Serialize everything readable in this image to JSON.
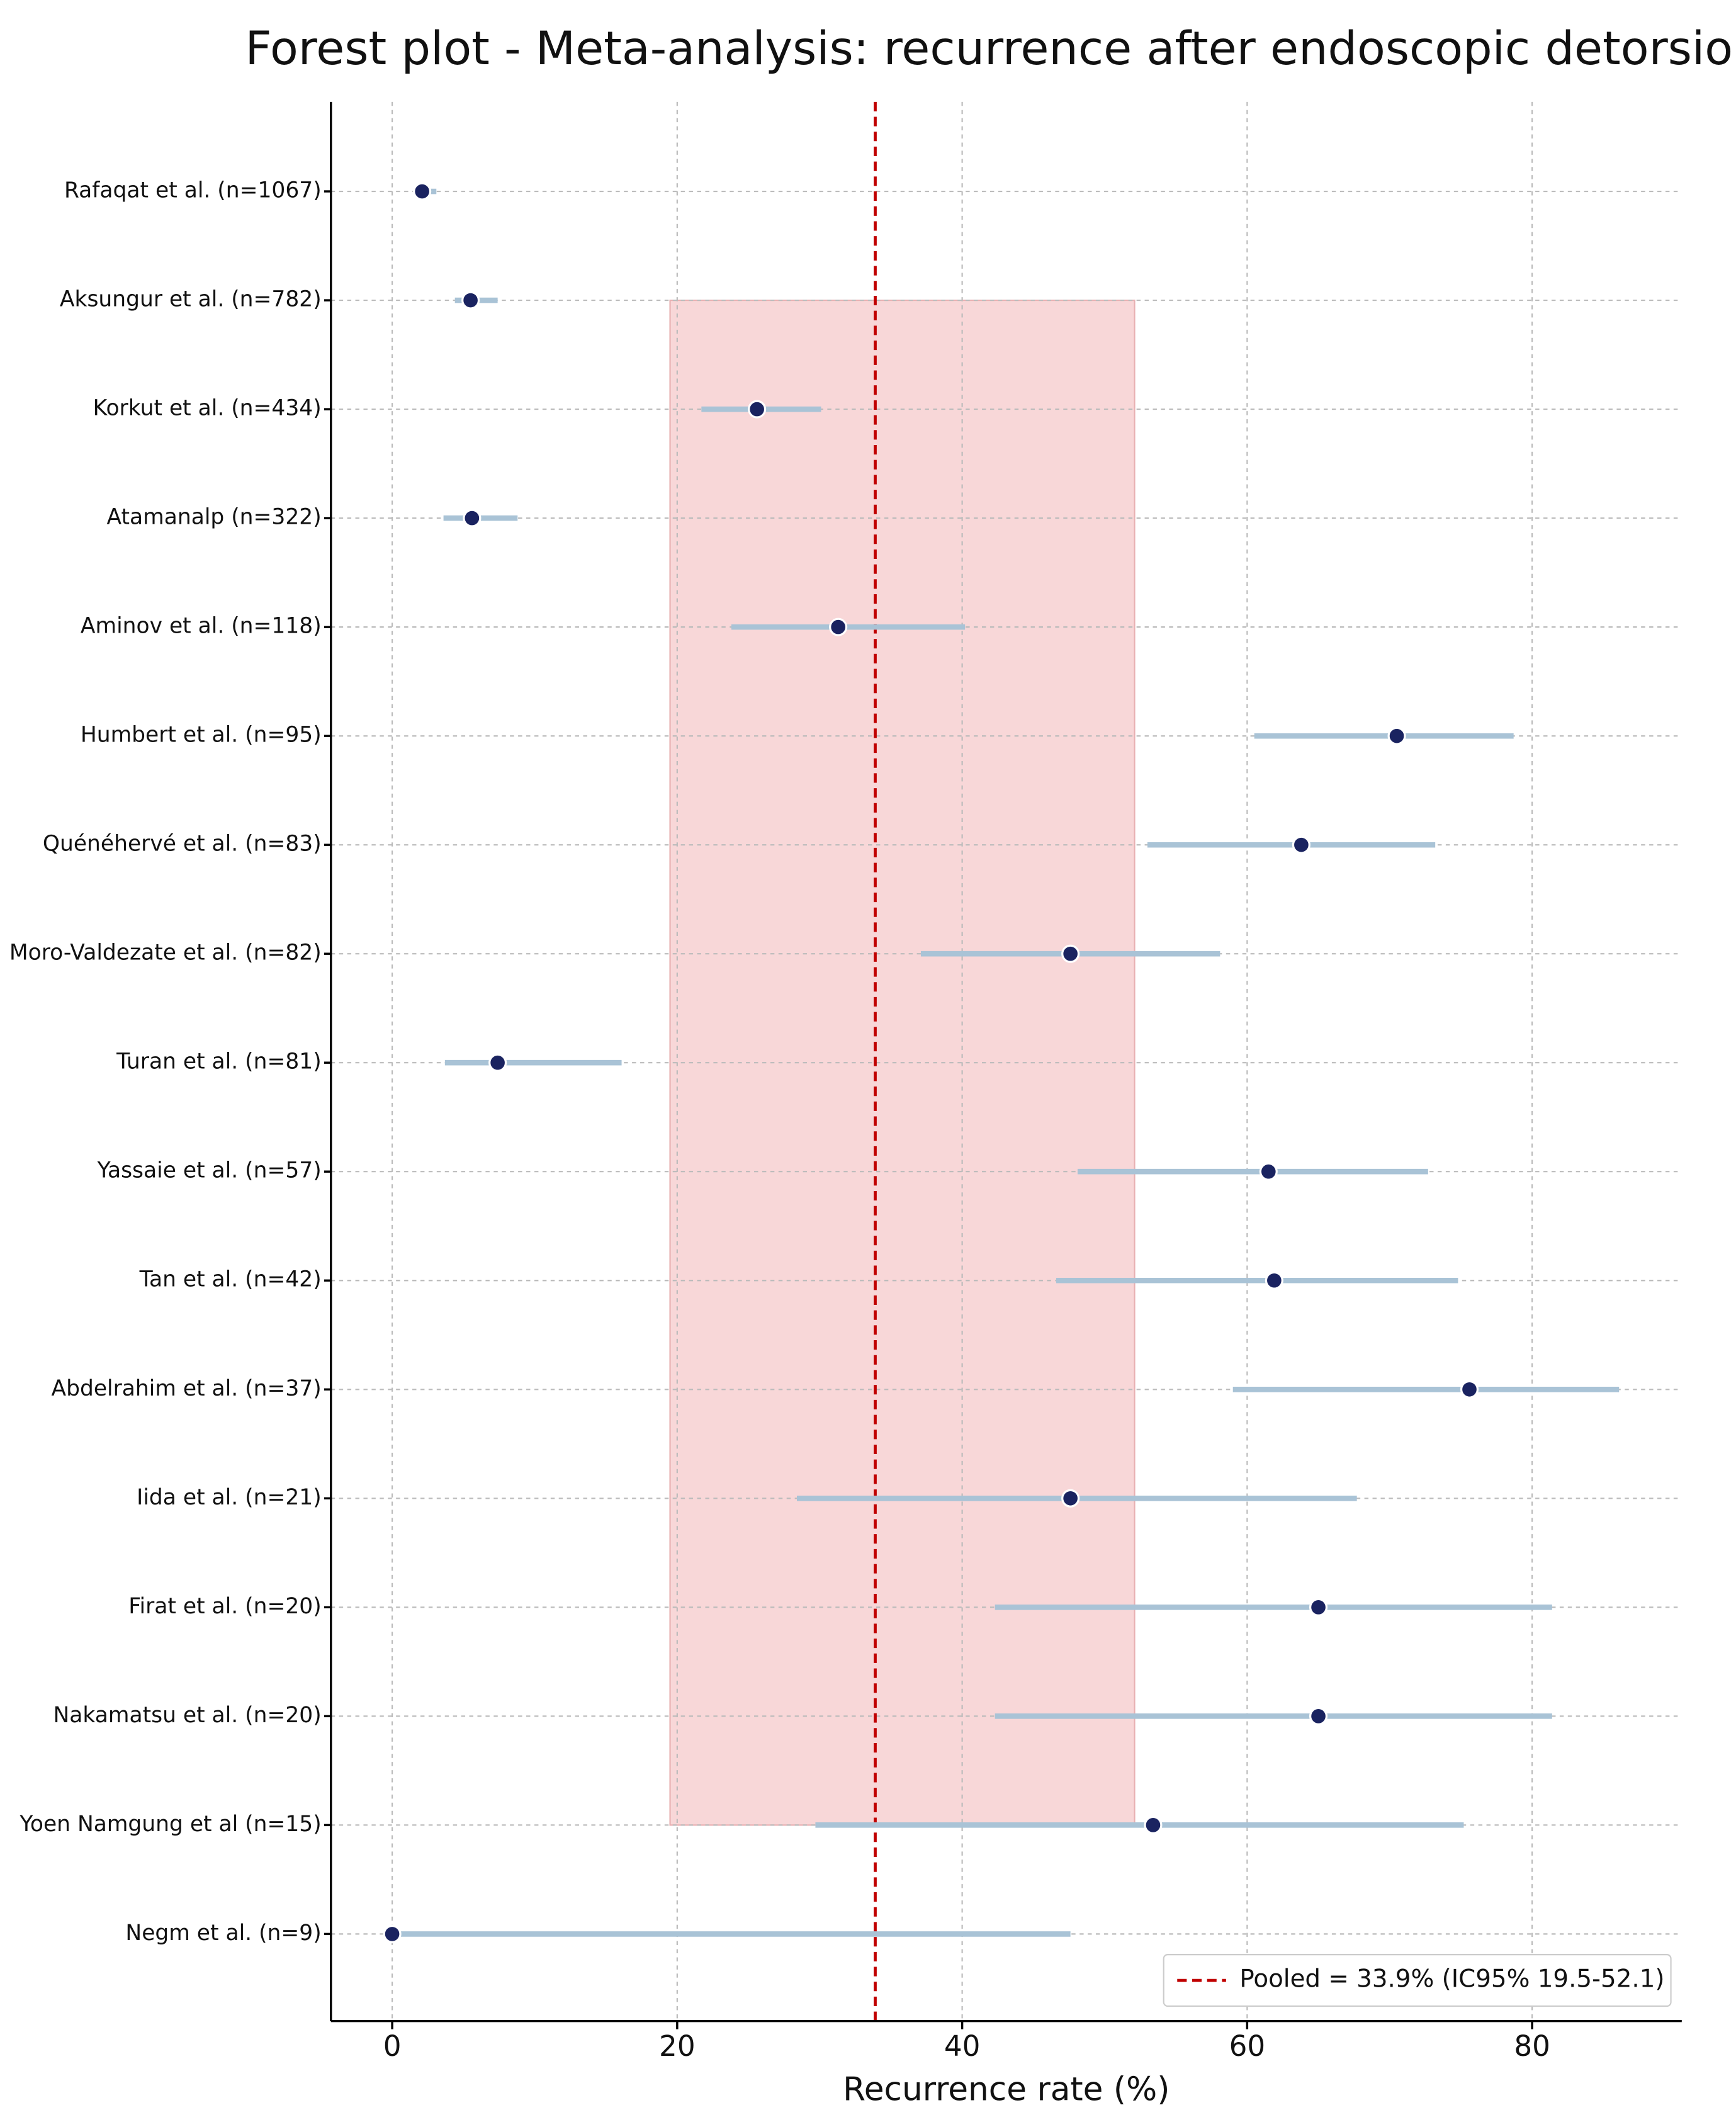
{
  "chart_data": {
    "type": "forest",
    "title": "Forest plot - Meta-analysis: recurrence after endoscopic detorsion",
    "x_label": "Recurrence rate (%)",
    "categories": [
      "Rafaqat et al. (n=1067)",
      "Aksungur et al. (n=782)",
      "Korkut et al. (n=434)",
      "Atamanalp (n=322)",
      "Aminov et al. (n=118)",
      "Humbert et al. (n=95)",
      "Quénéhervé et al. (n=83)",
      "Moro-Valdezate et al. (n=82)",
      "Turan et al. (n=81)",
      "Yassaie et al. (n=57)",
      "Tan et al. (n=42)",
      "Abdelrahim et al. (n=37)",
      "Iida et al. (n=21)",
      "Firat et al. (n=20)",
      "Nakamatsu et al. (n=20)",
      "Yoen Namgung et al (n=15)",
      "Negm et al. (n=9)"
    ],
    "values": [
      2.1,
      5.5,
      25.6,
      5.6,
      31.3,
      70.5,
      63.8,
      47.6,
      7.4,
      61.5,
      61.9,
      75.6,
      47.6,
      65.0,
      65.0,
      53.4,
      0
    ],
    "lower": [
      1.5,
      4.4,
      21.7,
      3.6,
      23.8,
      60.5,
      53.0,
      37.1,
      3.7,
      48.1,
      46.6,
      59.0,
      28.4,
      42.3,
      42.3,
      29.7,
      0
    ],
    "upper": [
      3.1,
      7.4,
      30.1,
      8.8,
      40.2,
      78.7,
      73.2,
      58.1,
      16.1,
      72.7,
      74.8,
      86.1,
      67.7,
      81.4,
      81.4,
      75.2,
      47.6
    ],
    "pooled": 33.9,
    "pooled_lower": 19.5,
    "pooled_upper": 52.1,
    "legend_label": "Pooled = 33.9% (IC95% 19.5-52.1)",
    "point_color": "#1a2360",
    "ci_color": "#a9c3d6",
    "pooled_color": "#c00000",
    "band_color": "#f8d7d8",
    "xlim": [
      -4.3,
      90.5
    ],
    "xticks": [
      0,
      20,
      40,
      60,
      80
    ],
    "grid": true,
    "legend_position": "lower right"
  }
}
